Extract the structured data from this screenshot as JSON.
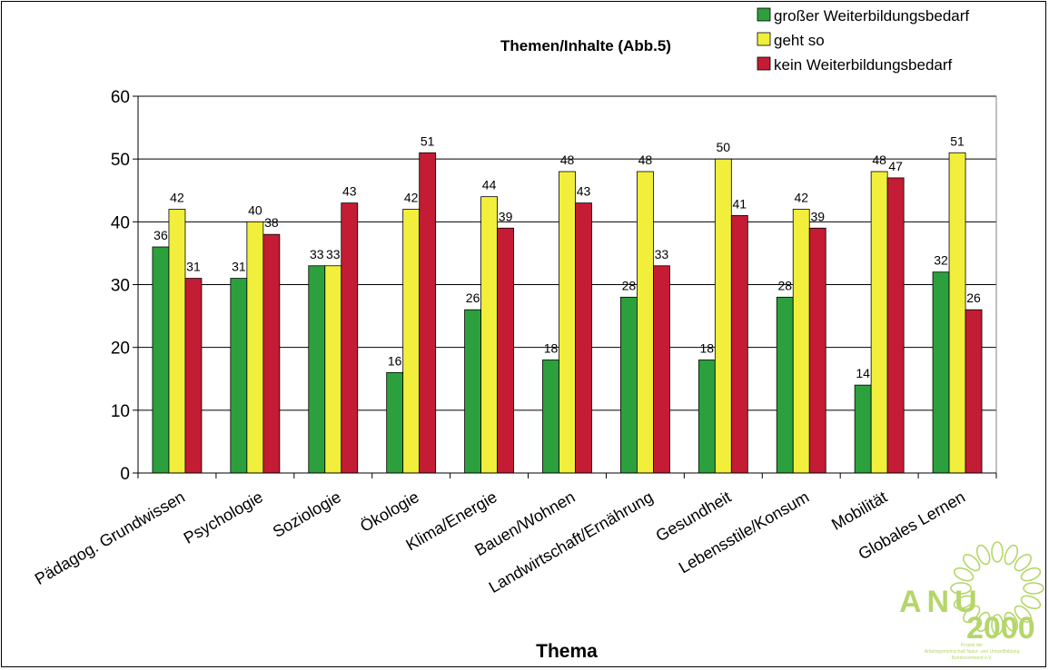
{
  "chart_data": {
    "type": "bar",
    "title": "Themen/Inhalte (Abb.5)",
    "xlabel": "Thema",
    "ylabel": "",
    "ylim": [
      0,
      60
    ],
    "yticks": [
      0,
      10,
      20,
      30,
      40,
      50,
      60
    ],
    "grid": true,
    "legend_position": "top-right",
    "categories": [
      "Pädagog. Grundwissen",
      "Psychologie",
      "Soziologie",
      "Ökologie",
      "Klima/Energie",
      "Bauen/Wohnen",
      "Landwirtschaft/Ernährung",
      "Gesundheit",
      "Lebensstile/Konsum",
      "Mobilität",
      "Globales Lernen"
    ],
    "series": [
      {
        "name": "großer Weiterbildungsbedarf",
        "color": "#2ca03c",
        "values": [
          36,
          31,
          33,
          16,
          26,
          18,
          28,
          18,
          28,
          14,
          32
        ]
      },
      {
        "name": "geht so",
        "color": "#f2ee3c",
        "values": [
          42,
          40,
          33,
          42,
          44,
          48,
          48,
          50,
          42,
          48,
          51
        ]
      },
      {
        "name": "kein Weiterbildungsbedarf",
        "color": "#c41c34",
        "values": [
          31,
          38,
          43,
          51,
          39,
          43,
          33,
          41,
          39,
          47,
          26
        ]
      }
    ]
  },
  "logo": {
    "text": "ANU",
    "year": "2000",
    "caption_lines": [
      "Projekt der",
      "Arbeitsgemeinschaft Natur- und Umweltbildung",
      "Bundesverband e.V."
    ],
    "color": "#b5d66a"
  }
}
